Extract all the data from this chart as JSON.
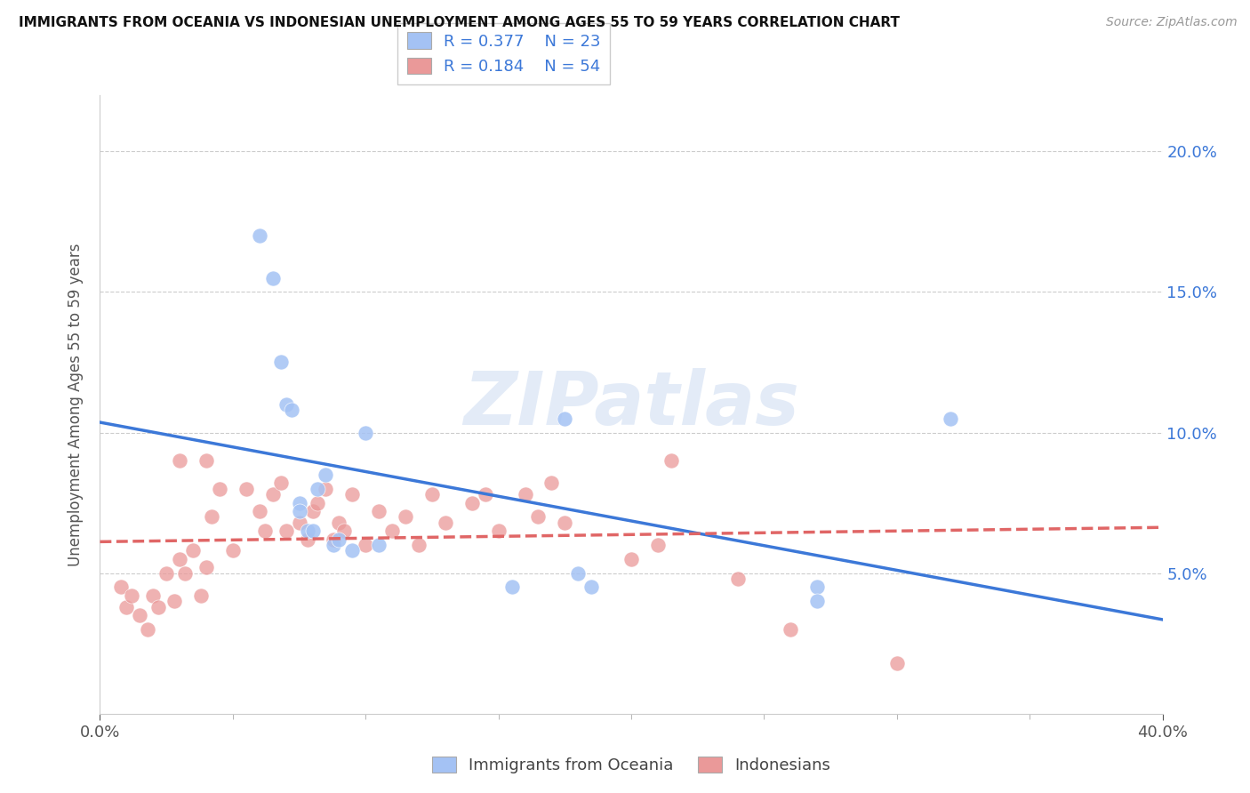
{
  "title": "IMMIGRANTS FROM OCEANIA VS INDONESIAN UNEMPLOYMENT AMONG AGES 55 TO 59 YEARS CORRELATION CHART",
  "source": "Source: ZipAtlas.com",
  "ylabel": "Unemployment Among Ages 55 to 59 years",
  "xlim": [
    0.0,
    0.4
  ],
  "ylim": [
    0.0,
    0.22
  ],
  "ytick_values": [
    0.05,
    0.1,
    0.15,
    0.2
  ],
  "ytick_labels": [
    "5.0%",
    "10.0%",
    "15.0%",
    "20.0%"
  ],
  "blue_color": "#a4c2f4",
  "pink_color": "#ea9999",
  "blue_line_color": "#3c78d8",
  "pink_line_color": "#e06666",
  "legend_r1": "R = 0.377",
  "legend_n1": "N = 23",
  "legend_r2": "R = 0.184",
  "legend_n2": "N = 54",
  "watermark": "ZIPatlas",
  "background_color": "#ffffff",
  "grid_color": "#cccccc",
  "blue_x": [
    0.06,
    0.065,
    0.068,
    0.07,
    0.072,
    0.075,
    0.075,
    0.078,
    0.08,
    0.082,
    0.085,
    0.088,
    0.09,
    0.095,
    0.1,
    0.105,
    0.175,
    0.18,
    0.185,
    0.27,
    0.27,
    0.32,
    0.155
  ],
  "blue_y": [
    0.17,
    0.155,
    0.125,
    0.11,
    0.108,
    0.075,
    0.072,
    0.065,
    0.065,
    0.08,
    0.085,
    0.06,
    0.062,
    0.058,
    0.1,
    0.06,
    0.105,
    0.05,
    0.045,
    0.045,
    0.04,
    0.105,
    0.045
  ],
  "pink_x": [
    0.008,
    0.01,
    0.012,
    0.015,
    0.018,
    0.02,
    0.022,
    0.025,
    0.028,
    0.03,
    0.032,
    0.035,
    0.038,
    0.04,
    0.042,
    0.045,
    0.05,
    0.055,
    0.06,
    0.062,
    0.065,
    0.068,
    0.07,
    0.075,
    0.078,
    0.08,
    0.082,
    0.085,
    0.088,
    0.09,
    0.092,
    0.095,
    0.1,
    0.105,
    0.11,
    0.115,
    0.12,
    0.125,
    0.13,
    0.14,
    0.145,
    0.15,
    0.16,
    0.165,
    0.17,
    0.175,
    0.2,
    0.21,
    0.215,
    0.24,
    0.26,
    0.3,
    0.03,
    0.04
  ],
  "pink_y": [
    0.045,
    0.038,
    0.042,
    0.035,
    0.03,
    0.042,
    0.038,
    0.05,
    0.04,
    0.055,
    0.05,
    0.058,
    0.042,
    0.052,
    0.07,
    0.08,
    0.058,
    0.08,
    0.072,
    0.065,
    0.078,
    0.082,
    0.065,
    0.068,
    0.062,
    0.072,
    0.075,
    0.08,
    0.062,
    0.068,
    0.065,
    0.078,
    0.06,
    0.072,
    0.065,
    0.07,
    0.06,
    0.078,
    0.068,
    0.075,
    0.078,
    0.065,
    0.078,
    0.07,
    0.082,
    0.068,
    0.055,
    0.06,
    0.09,
    0.048,
    0.03,
    0.018,
    0.09,
    0.09
  ]
}
